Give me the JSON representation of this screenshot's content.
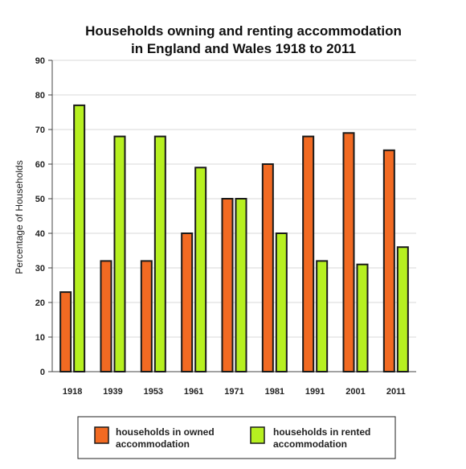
{
  "colors": {
    "owned": "#f26a22",
    "rented": "#b6f020",
    "stroke": "#1a1a1a",
    "grid": "#d9d9d9"
  },
  "chart_data": {
    "type": "bar",
    "title": [
      "Households owning and renting accommodation",
      "in England and Wales 1918 to 2011"
    ],
    "xlabel": "",
    "ylabel": "Percentage of Households",
    "ylim": [
      0,
      90
    ],
    "yticks": [
      0,
      10,
      20,
      30,
      40,
      50,
      60,
      70,
      80,
      90
    ],
    "grid": true,
    "legend_position": "bottom",
    "categories": [
      "1918",
      "1939",
      "1953",
      "1961",
      "1971",
      "1981",
      "1991",
      "2001",
      "2011"
    ],
    "series": [
      {
        "name": [
          "households in owned",
          "accommodation"
        ],
        "values": [
          23,
          32,
          32,
          40,
          50,
          60,
          68,
          69,
          64
        ]
      },
      {
        "name": [
          "households in rented",
          "accommodation"
        ],
        "values": [
          77,
          68,
          68,
          59,
          50,
          40,
          32,
          31,
          36
        ]
      }
    ]
  }
}
